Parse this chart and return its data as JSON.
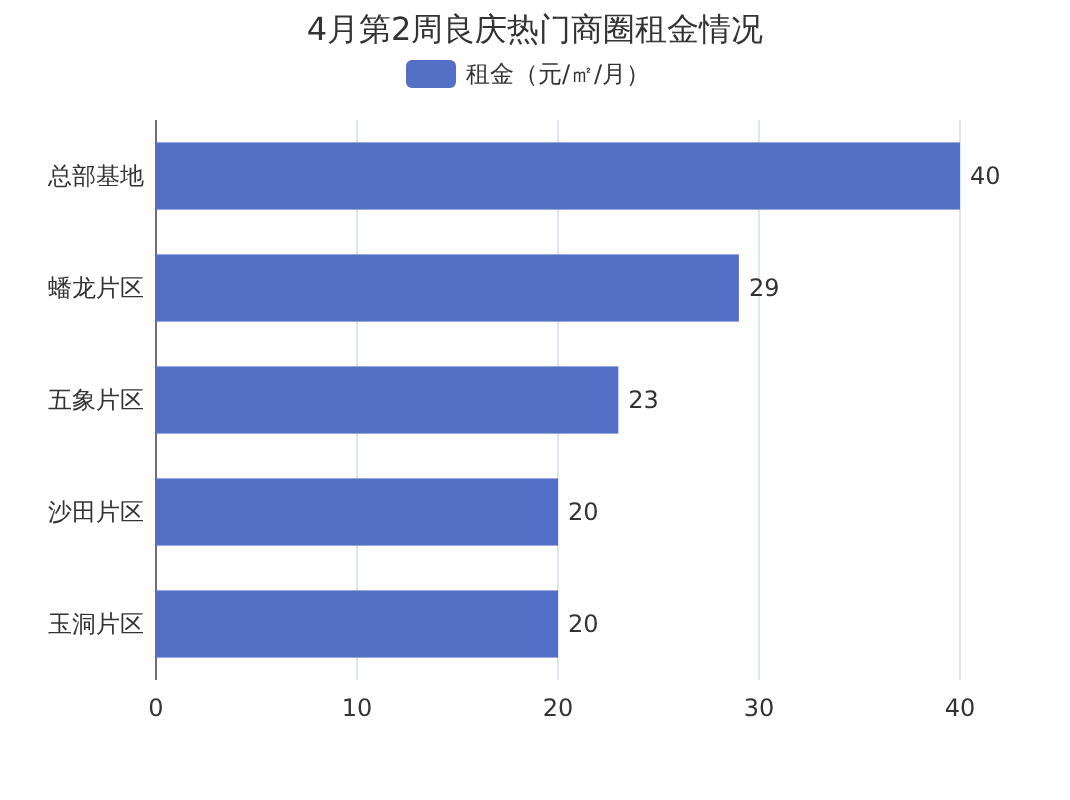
{
  "chart_data": {
    "type": "bar",
    "orientation": "horizontal",
    "title": "4月第2周良庆热门商圈租金情况",
    "categories": [
      "总部基地",
      "蟠龙片区",
      "五象片区",
      "沙田片区",
      "玉洞片区"
    ],
    "series": [
      {
        "name": "租金（元/㎡/月）",
        "color": "#5470c6",
        "values": [
          40,
          29,
          23,
          20,
          20
        ]
      }
    ],
    "xlim": [
      0,
      40
    ],
    "xticks": [
      0,
      10,
      20,
      30,
      40
    ],
    "grid": "x",
    "legend": "top",
    "data_labels": true
  }
}
